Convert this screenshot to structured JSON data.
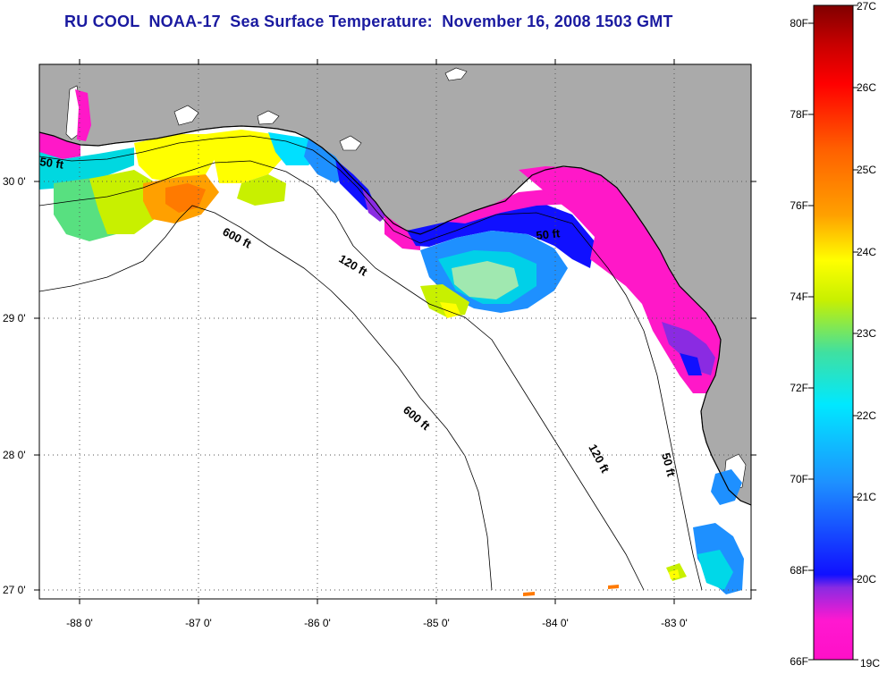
{
  "title": "RU COOL  NOAA-17  Sea Surface Temperature:  November 16, 2008 1503 GMT",
  "map": {
    "lon_ticks": [
      "-88 0'",
      "-87 0'",
      "-86 0'",
      "-85 0'",
      "-84 0'",
      "-83 0'"
    ],
    "lat_ticks": [
      "30 0'",
      "29 0'",
      "28 0'",
      "27 0'"
    ],
    "land_color": "#aaaaaa",
    "no_data_color": "#ffffff",
    "contour_labels": {
      "shelf_50_nw": "50 ft",
      "shelf_600_a": "600 ft",
      "shelf_120_a": "120 ft",
      "shelf_50_b": "50 ft",
      "shelf_600_b": "600 ft",
      "shelf_120_b": "120 ft",
      "shelf_50_c": "50 ft"
    }
  },
  "colorbar": {
    "fahrenheit_labels": [
      "80F",
      "78F",
      "76F",
      "74F",
      "72F",
      "70F",
      "68F",
      "66F"
    ],
    "celsius_labels": [
      "27C",
      "26C",
      "25C",
      "24C",
      "23C",
      "22C",
      "21C",
      "20C",
      "19C"
    ],
    "colors": [
      "#ff10c8",
      "#8a2be2",
      "#1010ff",
      "#1e90ff",
      "#00e0ff",
      "#40e0a0",
      "#c8f000",
      "#ffff00",
      "#ffa000",
      "#ff6000",
      "#ff0000",
      "#c80000",
      "#800000"
    ]
  }
}
